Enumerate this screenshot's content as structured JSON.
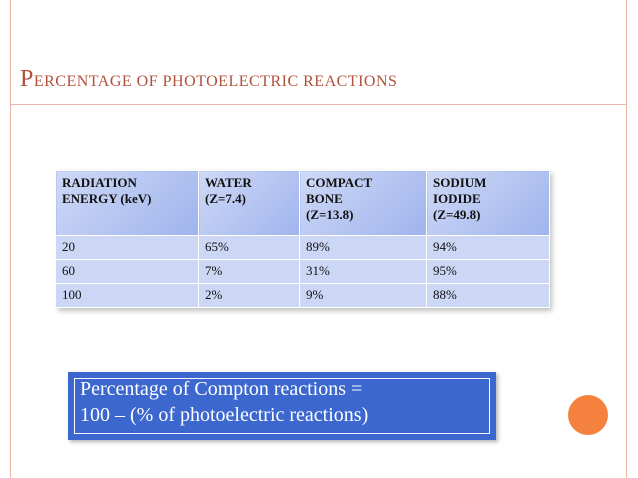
{
  "slide": {
    "title": {
      "first_letter": "P",
      "rest": "ercentage of photoelectric reactions"
    },
    "table": {
      "headers": [
        [
          "RADIATION",
          "ENERGY (keV)"
        ],
        [
          "WATER",
          "(Z=7.4)"
        ],
        [
          "COMPACT",
          "BONE",
          "(Z=13.8)"
        ],
        [
          "SODIUM",
          "IODIDE",
          "(Z=49.8)"
        ]
      ],
      "rows": [
        [
          "20",
          "65%",
          "89%",
          "94%"
        ],
        [
          "60",
          "7%",
          "31%",
          "95%"
        ],
        [
          "100",
          "2%",
          "9%",
          "88%"
        ]
      ]
    },
    "note": {
      "line1": "Percentage of Compton reactions =",
      "line2": "100 – (% of photoelectric reactions)"
    },
    "colors": {
      "title": "#b1503b",
      "frame": "#e9b7a8",
      "table_header": "#b4c4f1",
      "table_cell": "#ccd6f5",
      "note_bg": "#3b67cf",
      "accent_circle": "#f4813d"
    }
  }
}
